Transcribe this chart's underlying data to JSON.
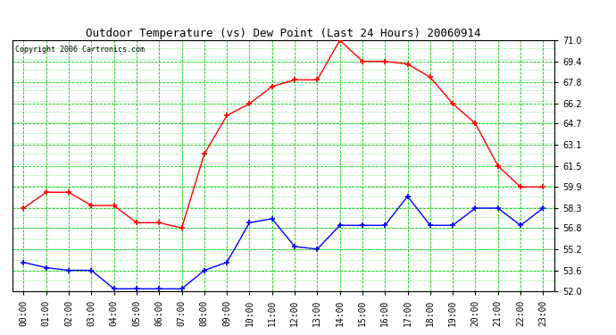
{
  "title": "Outdoor Temperature (vs) Dew Point (Last 24 Hours) 20060914",
  "copyright": "Copyright 2006 Cartronics.com",
  "background_color": "#ffffff",
  "plot_bg_color": "#ffffff",
  "grid_color": "#00cc00",
  "x_labels": [
    "00:00",
    "01:00",
    "02:00",
    "03:00",
    "04:00",
    "05:00",
    "06:00",
    "07:00",
    "08:00",
    "09:00",
    "10:00",
    "11:00",
    "12:00",
    "13:00",
    "14:00",
    "15:00",
    "16:00",
    "17:00",
    "18:00",
    "19:00",
    "20:00",
    "21:00",
    "22:00",
    "23:00"
  ],
  "y_ticks": [
    52.0,
    53.6,
    55.2,
    56.8,
    58.3,
    59.9,
    61.5,
    63.1,
    64.7,
    66.2,
    67.8,
    69.4,
    71.0
  ],
  "ylim": [
    52.0,
    71.0
  ],
  "temp_color": "#ff0000",
  "dew_color": "#0000ff",
  "temp_data": [
    58.3,
    59.5,
    59.5,
    58.5,
    58.5,
    57.2,
    57.2,
    56.8,
    62.4,
    65.3,
    66.2,
    67.5,
    68.0,
    68.0,
    71.0,
    69.4,
    69.4,
    69.2,
    68.2,
    66.2,
    64.7,
    61.5,
    59.9,
    59.9
  ],
  "dew_data": [
    54.2,
    53.8,
    53.6,
    53.6,
    52.2,
    52.2,
    52.2,
    52.2,
    53.6,
    54.2,
    57.2,
    57.5,
    55.4,
    55.2,
    57.0,
    57.0,
    57.0,
    59.2,
    57.0,
    57.0,
    58.3,
    58.3,
    57.0,
    58.3
  ],
  "title_fontsize": 9,
  "copyright_fontsize": 6,
  "tick_fontsize": 7,
  "ytick_fontsize": 7
}
